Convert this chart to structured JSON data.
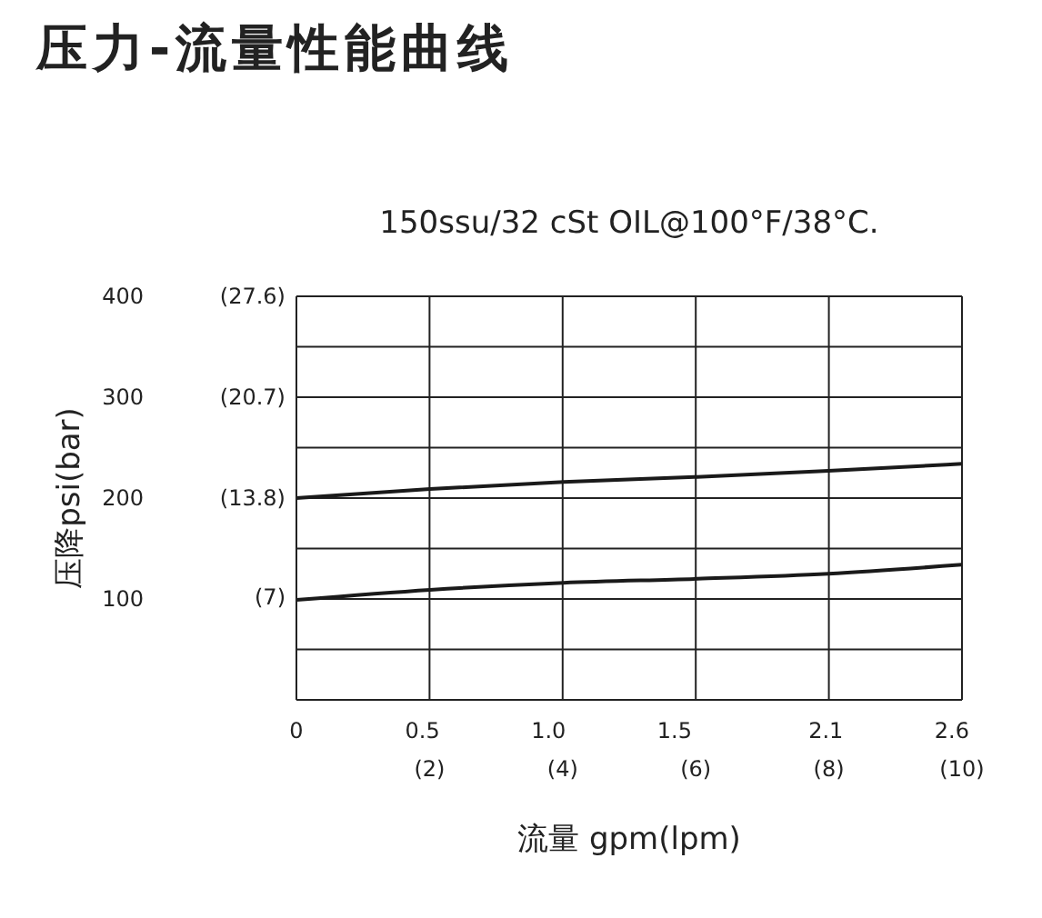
{
  "chart_data": {
    "type": "line",
    "title": "压力-流量性能曲线",
    "subtitle": "150ssu/32 cSt OIL@100°F/38°C.",
    "xlabel": "流量 gpm(lpm)",
    "ylabel": "压降psi(bar)",
    "x": [
      0,
      0.53,
      1.06,
      1.59,
      2.11,
      2.64
    ],
    "series": [
      {
        "color": "#1a1a1a",
        "values": [
          200,
          209,
          216,
          221,
          227,
          234
        ]
      },
      {
        "color": "#1a1a1a",
        "values": [
          99,
          109,
          116,
          120,
          125,
          134
        ]
      }
    ],
    "xlim": [
      0,
      2.64
    ],
    "xticks": [
      0,
      0.5,
      {
        "value": 1.0,
        "label": "1.0"
      },
      1.5,
      2.1,
      2.6
    ],
    "x2lim": [
      0,
      10
    ],
    "x2ticks": [
      {
        "value": 2,
        "label": "(2)"
      },
      {
        "value": 4,
        "label": "(4)"
      },
      {
        "value": 6,
        "label": "(6)"
      },
      {
        "value": 8,
        "label": "(8)"
      },
      {
        "value": 10,
        "label": "(10)"
      }
    ],
    "ylim": [
      0,
      400
    ],
    "yticks": [
      {
        "value": 0,
        "label": null
      },
      {
        "value": 50,
        "label": null
      },
      100,
      {
        "value": 150,
        "label": null
      },
      200,
      {
        "value": 250,
        "label": null
      },
      300,
      {
        "value": 350,
        "label": null
      },
      400
    ],
    "y2lim": [
      0,
      27.6
    ],
    "y2ticks": [
      {
        "value": 7,
        "label": "(7)"
      },
      {
        "value": 13.8,
        "label": "(13.8)"
      },
      {
        "value": 20.7,
        "label": "(20.7)"
      },
      {
        "value": 27.6,
        "label": "(27.6)"
      }
    ],
    "grid": true
  }
}
